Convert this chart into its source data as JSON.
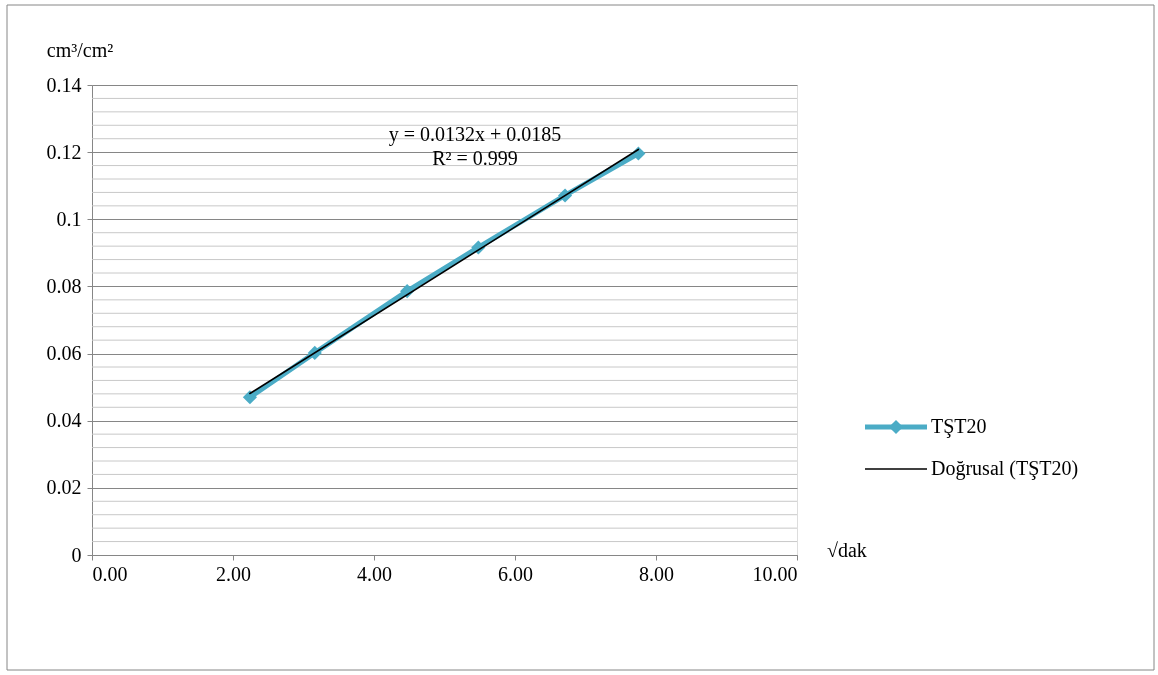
{
  "chart_data": {
    "type": "line",
    "xlabel": "√dak",
    "ylabel": "cm³/cm²",
    "xlim": [
      0,
      10
    ],
    "xticks": [
      {
        "value": 0,
        "label": "0.00"
      },
      {
        "value": 2,
        "label": "2.00"
      },
      {
        "value": 4,
        "label": "4.00"
      },
      {
        "value": 6,
        "label": "6.00"
      },
      {
        "value": 8,
        "label": "8.00"
      },
      {
        "value": 10,
        "label": "10.00"
      }
    ],
    "ylim": [
      0,
      0.14
    ],
    "yticks": [
      0,
      {
        "value": 0.004,
        "label": null
      },
      {
        "value": 0.008,
        "label": null
      },
      {
        "value": 0.012,
        "label": null
      },
      {
        "value": 0.016,
        "label": null
      },
      0.02,
      {
        "value": 0.024,
        "label": null
      },
      {
        "value": 0.028,
        "label": null
      },
      {
        "value": 0.032,
        "label": null
      },
      {
        "value": 0.036,
        "label": null
      },
      0.04,
      {
        "value": 0.044,
        "label": null
      },
      {
        "value": 0.048,
        "label": null
      },
      {
        "value": 0.052,
        "label": null
      },
      {
        "value": 0.056,
        "label": null
      },
      0.06,
      {
        "value": 0.064,
        "label": null
      },
      {
        "value": 0.068,
        "label": null
      },
      {
        "value": 0.072,
        "label": null
      },
      {
        "value": 0.076,
        "label": null
      },
      0.08,
      {
        "value": 0.084,
        "label": null
      },
      {
        "value": 0.088,
        "label": null
      },
      {
        "value": 0.092,
        "label": null
      },
      {
        "value": 0.096,
        "label": null
      },
      0.1,
      {
        "value": 0.104,
        "label": null
      },
      {
        "value": 0.108,
        "label": null
      },
      {
        "value": 0.112,
        "label": null
      },
      {
        "value": 0.116,
        "label": null
      },
      0.12,
      {
        "value": 0.124,
        "label": null
      },
      {
        "value": 0.128,
        "label": null
      },
      {
        "value": 0.132,
        "label": null
      },
      {
        "value": 0.136,
        "label": null
      },
      0.14
    ],
    "grid": "y",
    "legend": "right",
    "series": [
      {
        "name": "TŞT20",
        "color": "#4bacc6",
        "marker": "diamond",
        "x": [
          2.24,
          3.16,
          4.47,
          5.48,
          6.71,
          7.75
        ],
        "values": [
          0.047,
          0.0602,
          0.0786,
          0.0916,
          0.1071,
          0.1196
        ]
      },
      {
        "name": "Doğrusal (TŞT20)",
        "type": "line",
        "color": "#000000",
        "marker": "none",
        "x": [
          2.24,
          7.75
        ],
        "values": [
          0.0481,
          0.1208
        ]
      }
    ],
    "annotations": [
      "y = 0.0132x + 0.0185\nR² = 0.999"
    ]
  }
}
